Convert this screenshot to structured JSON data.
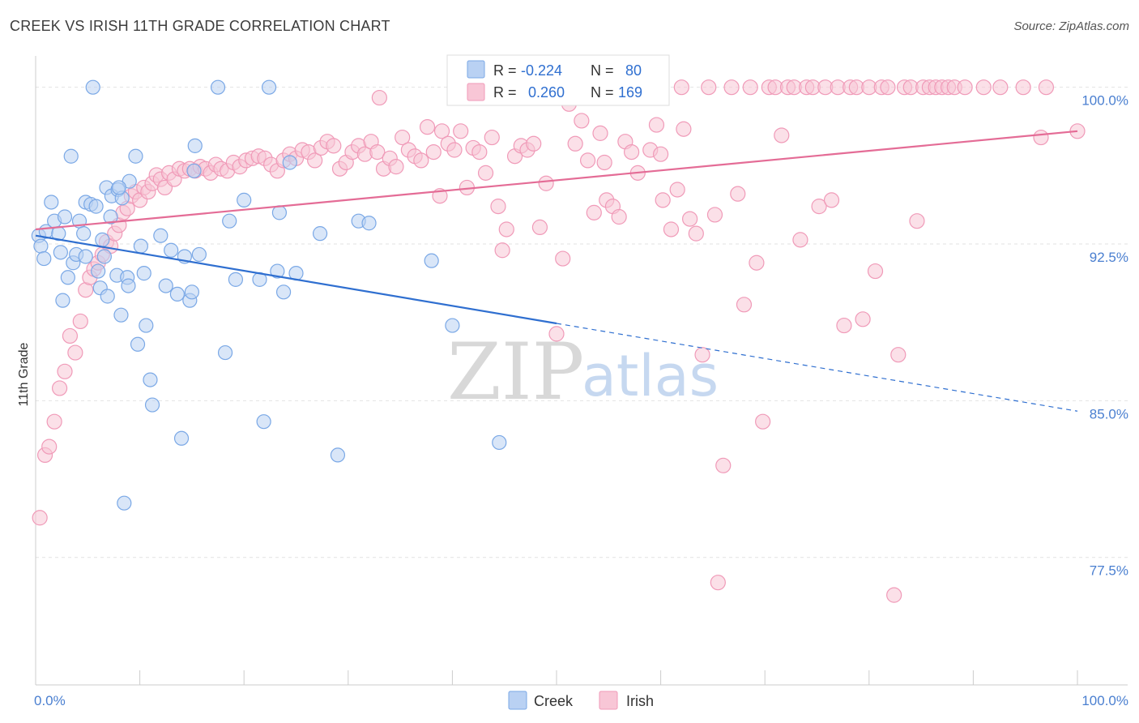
{
  "header": {
    "title": "CREEK VS IRISH 11TH GRADE CORRELATION CHART",
    "source": "Source: ZipAtlas.com"
  },
  "watermark": {
    "part1": "ZIP",
    "part2": "atlas"
  },
  "chart_data": {
    "type": "scatter",
    "title": "CREEK VS IRISH 11TH GRADE CORRELATION CHART",
    "xlabel": "",
    "ylabel": "11th Grade",
    "xlim": [
      0,
      100
    ],
    "ylim": [
      71.4,
      101.5
    ],
    "y_ticks": [
      {
        "value": 100.0,
        "label": "100.0%"
      },
      {
        "value": 92.5,
        "label": "92.5%"
      },
      {
        "value": 85.0,
        "label": "85.0%"
      },
      {
        "value": 77.5,
        "label": "77.5%"
      }
    ],
    "x_ticks": [
      {
        "value": 0,
        "label": "0.0%"
      },
      {
        "value": 100,
        "label": "100.0%"
      }
    ],
    "grid": true,
    "legend_position": "top-center",
    "stats_legend": [
      {
        "series": "Creek",
        "r_label": "R =",
        "r_value": "-0.224",
        "n_label": "N =",
        "n_value": "80"
      },
      {
        "series": "Irish",
        "r_label": "R =",
        "r_value": "0.260",
        "n_label": "N =",
        "n_value": "169"
      }
    ],
    "series": [
      {
        "name": "Creek",
        "color": "#7aa8e6",
        "fill": "#b9d1f3",
        "trend_color": "#2f6fd0",
        "trend": {
          "x0": 0,
          "y0": 92.9,
          "x1": 50,
          "y1": 88.7,
          "dash_to_x": 100,
          "dash_to_y": 84.5
        },
        "points": [
          [
            0.3,
            92.9
          ],
          [
            0.5,
            92.4
          ],
          [
            0.8,
            91.8
          ],
          [
            1.0,
            93.1
          ],
          [
            1.5,
            94.5
          ],
          [
            1.8,
            93.6
          ],
          [
            2.2,
            93.0
          ],
          [
            2.4,
            92.1
          ],
          [
            2.6,
            89.8
          ],
          [
            2.8,
            93.8
          ],
          [
            3.1,
            90.9
          ],
          [
            3.4,
            96.7
          ],
          [
            3.6,
            91.6
          ],
          [
            3.9,
            92.0
          ],
          [
            4.2,
            93.6
          ],
          [
            4.6,
            93.0
          ],
          [
            4.8,
            91.9
          ],
          [
            4.8,
            94.5
          ],
          [
            5.3,
            94.4
          ],
          [
            5.5,
            100.0
          ],
          [
            5.8,
            94.3
          ],
          [
            6.0,
            91.2
          ],
          [
            6.2,
            90.4
          ],
          [
            6.4,
            92.7
          ],
          [
            6.6,
            91.9
          ],
          [
            6.8,
            95.2
          ],
          [
            6.9,
            90.0
          ],
          [
            7.2,
            93.8
          ],
          [
            7.3,
            94.8
          ],
          [
            7.8,
            91.0
          ],
          [
            7.9,
            95.1
          ],
          [
            8.2,
            89.1
          ],
          [
            8.3,
            94.7
          ],
          [
            8.5,
            80.1
          ],
          [
            8.8,
            90.9
          ],
          [
            8.9,
            90.5
          ],
          [
            9.0,
            95.5
          ],
          [
            9.6,
            96.7
          ],
          [
            9.8,
            87.7
          ],
          [
            10.1,
            92.4
          ],
          [
            10.4,
            91.1
          ],
          [
            10.6,
            88.6
          ],
          [
            11.0,
            86.0
          ],
          [
            11.2,
            84.8
          ],
          [
            12.0,
            92.9
          ],
          [
            12.5,
            90.5
          ],
          [
            13.0,
            92.2
          ],
          [
            13.6,
            90.1
          ],
          [
            14.0,
            83.2
          ],
          [
            14.3,
            91.9
          ],
          [
            14.8,
            89.8
          ],
          [
            15.0,
            90.2
          ],
          [
            15.3,
            97.2
          ],
          [
            15.7,
            92.0
          ],
          [
            17.5,
            100.0
          ],
          [
            18.2,
            87.3
          ],
          [
            18.6,
            93.6
          ],
          [
            19.2,
            90.8
          ],
          [
            20.0,
            94.6
          ],
          [
            21.5,
            90.8
          ],
          [
            21.9,
            84.0
          ],
          [
            22.4,
            100.0
          ],
          [
            23.2,
            91.2
          ],
          [
            23.4,
            94.0
          ],
          [
            23.8,
            90.2
          ],
          [
            24.4,
            96.4
          ],
          [
            25.0,
            91.1
          ],
          [
            27.3,
            93.0
          ],
          [
            29.0,
            82.4
          ],
          [
            31.0,
            93.6
          ],
          [
            32.0,
            93.5
          ],
          [
            38.0,
            91.7
          ],
          [
            40.0,
            88.6
          ],
          [
            44.5,
            83.0
          ],
          [
            15.2,
            96.0
          ],
          [
            8.0,
            95.2
          ]
        ]
      },
      {
        "name": "Irish",
        "color": "#f09ab8",
        "fill": "#f8c6d6",
        "trend_color": "#e46c96",
        "trend": {
          "x0": 0,
          "y0": 93.2,
          "x1": 100,
          "y1": 97.9
        },
        "points": [
          [
            0.4,
            79.4
          ],
          [
            0.9,
            82.4
          ],
          [
            1.3,
            82.8
          ],
          [
            1.8,
            84.0
          ],
          [
            2.3,
            85.6
          ],
          [
            2.8,
            86.4
          ],
          [
            3.3,
            88.1
          ],
          [
            3.8,
            87.3
          ],
          [
            4.3,
            88.8
          ],
          [
            4.8,
            90.3
          ],
          [
            5.2,
            90.9
          ],
          [
            5.6,
            91.3
          ],
          [
            6.0,
            91.6
          ],
          [
            6.4,
            92.0
          ],
          [
            6.8,
            92.6
          ],
          [
            7.2,
            92.4
          ],
          [
            7.6,
            93.0
          ],
          [
            8.0,
            93.4
          ],
          [
            8.4,
            94.0
          ],
          [
            8.8,
            94.2
          ],
          [
            9.2,
            94.8
          ],
          [
            9.6,
            95.0
          ],
          [
            10.0,
            94.6
          ],
          [
            10.4,
            95.2
          ],
          [
            10.8,
            95.0
          ],
          [
            11.2,
            95.4
          ],
          [
            11.6,
            95.8
          ],
          [
            12.0,
            95.6
          ],
          [
            12.4,
            95.2
          ],
          [
            12.8,
            95.9
          ],
          [
            13.3,
            95.6
          ],
          [
            13.8,
            96.1
          ],
          [
            14.3,
            96.0
          ],
          [
            14.8,
            96.1
          ],
          [
            15.3,
            96.0
          ],
          [
            15.8,
            96.2
          ],
          [
            16.3,
            96.1
          ],
          [
            16.8,
            95.9
          ],
          [
            17.3,
            96.3
          ],
          [
            17.8,
            96.1
          ],
          [
            18.4,
            96.0
          ],
          [
            19.0,
            96.4
          ],
          [
            19.6,
            96.2
          ],
          [
            20.2,
            96.5
          ],
          [
            20.8,
            96.6
          ],
          [
            21.4,
            96.7
          ],
          [
            22.0,
            96.6
          ],
          [
            22.6,
            96.3
          ],
          [
            23.2,
            96.0
          ],
          [
            23.8,
            96.5
          ],
          [
            24.4,
            96.8
          ],
          [
            25.0,
            96.6
          ],
          [
            25.6,
            97.0
          ],
          [
            26.2,
            96.9
          ],
          [
            26.8,
            96.5
          ],
          [
            27.4,
            97.1
          ],
          [
            28.0,
            97.4
          ],
          [
            28.6,
            97.2
          ],
          [
            29.2,
            96.1
          ],
          [
            29.8,
            96.4
          ],
          [
            30.4,
            96.9
          ],
          [
            31.0,
            97.2
          ],
          [
            31.6,
            96.8
          ],
          [
            32.2,
            97.4
          ],
          [
            32.8,
            96.9
          ],
          [
            33.4,
            96.1
          ],
          [
            34.0,
            96.6
          ],
          [
            34.6,
            96.2
          ],
          [
            35.2,
            97.6
          ],
          [
            35.8,
            97.0
          ],
          [
            36.4,
            96.7
          ],
          [
            37.0,
            96.5
          ],
          [
            37.6,
            98.1
          ],
          [
            38.2,
            96.9
          ],
          [
            38.8,
            94.8
          ],
          [
            39.0,
            97.9
          ],
          [
            39.6,
            97.3
          ],
          [
            40.2,
            97.0
          ],
          [
            40.8,
            97.9
          ],
          [
            41.4,
            95.2
          ],
          [
            42.0,
            97.1
          ],
          [
            42.6,
            96.9
          ],
          [
            43.2,
            95.9
          ],
          [
            43.8,
            97.6
          ],
          [
            44.4,
            94.3
          ],
          [
            44.8,
            92.2
          ],
          [
            45.2,
            93.2
          ],
          [
            46.0,
            96.7
          ],
          [
            46.6,
            97.2
          ],
          [
            47.2,
            97.0
          ],
          [
            47.8,
            97.3
          ],
          [
            48.4,
            93.3
          ],
          [
            49.0,
            95.4
          ],
          [
            50.0,
            88.2
          ],
          [
            50.6,
            91.8
          ],
          [
            51.2,
            99.2
          ],
          [
            51.8,
            97.3
          ],
          [
            52.4,
            98.4
          ],
          [
            53.0,
            96.5
          ],
          [
            53.6,
            94.0
          ],
          [
            54.2,
            97.8
          ],
          [
            54.8,
            94.6
          ],
          [
            55.4,
            94.3
          ],
          [
            56.0,
            93.8
          ],
          [
            56.6,
            97.4
          ],
          [
            57.2,
            96.9
          ],
          [
            57.8,
            95.9
          ],
          [
            58.4,
            100.0
          ],
          [
            59.0,
            97.0
          ],
          [
            59.6,
            98.2
          ],
          [
            60.2,
            94.6
          ],
          [
            61.0,
            93.2
          ],
          [
            61.6,
            95.1
          ],
          [
            62.2,
            98.0
          ],
          [
            62.8,
            93.7
          ],
          [
            63.4,
            93.0
          ],
          [
            64.0,
            87.2
          ],
          [
            64.6,
            100.0
          ],
          [
            65.2,
            93.9
          ],
          [
            66.0,
            81.9
          ],
          [
            65.5,
            76.3
          ],
          [
            66.8,
            100.0
          ],
          [
            67.4,
            94.9
          ],
          [
            68.0,
            89.6
          ],
          [
            68.6,
            100.0
          ],
          [
            69.2,
            91.6
          ],
          [
            69.8,
            84.0
          ],
          [
            70.4,
            100.0
          ],
          [
            71.0,
            100.0
          ],
          [
            71.6,
            97.7
          ],
          [
            72.2,
            100.0
          ],
          [
            72.8,
            100.0
          ],
          [
            73.4,
            92.7
          ],
          [
            74.0,
            100.0
          ],
          [
            74.6,
            100.0
          ],
          [
            75.2,
            94.3
          ],
          [
            75.8,
            100.0
          ],
          [
            76.4,
            94.6
          ],
          [
            77.0,
            100.0
          ],
          [
            77.6,
            88.6
          ],
          [
            78.2,
            100.0
          ],
          [
            78.8,
            100.0
          ],
          [
            79.4,
            88.9
          ],
          [
            80.0,
            100.0
          ],
          [
            80.6,
            91.2
          ],
          [
            81.2,
            100.0
          ],
          [
            81.8,
            100.0
          ],
          [
            82.4,
            75.7
          ],
          [
            82.8,
            87.2
          ],
          [
            83.4,
            100.0
          ],
          [
            84.0,
            100.0
          ],
          [
            84.6,
            93.6
          ],
          [
            85.2,
            100.0
          ],
          [
            85.8,
            100.0
          ],
          [
            86.4,
            100.0
          ],
          [
            87.0,
            100.0
          ],
          [
            87.6,
            100.0
          ],
          [
            88.2,
            100.0
          ],
          [
            89.2,
            100.0
          ],
          [
            91.0,
            100.0
          ],
          [
            92.6,
            100.0
          ],
          [
            94.8,
            100.0
          ],
          [
            96.5,
            97.6
          ],
          [
            100.0,
            97.9
          ],
          [
            97.0,
            100.0
          ],
          [
            62.0,
            100.0
          ],
          [
            56.0,
            100.0
          ],
          [
            48.0,
            100.0
          ],
          [
            43.0,
            100.0
          ],
          [
            52.0,
            100.0
          ],
          [
            54.6,
            96.4
          ],
          [
            60.0,
            96.8
          ],
          [
            33.0,
            99.5
          ]
        ]
      }
    ]
  },
  "bottom_legend": [
    {
      "label": "Creek",
      "color": "#b9d1f3",
      "stroke": "#7aa8e6"
    },
    {
      "label": "Irish",
      "color": "#f8c6d6",
      "stroke": "#f09ab8"
    }
  ]
}
